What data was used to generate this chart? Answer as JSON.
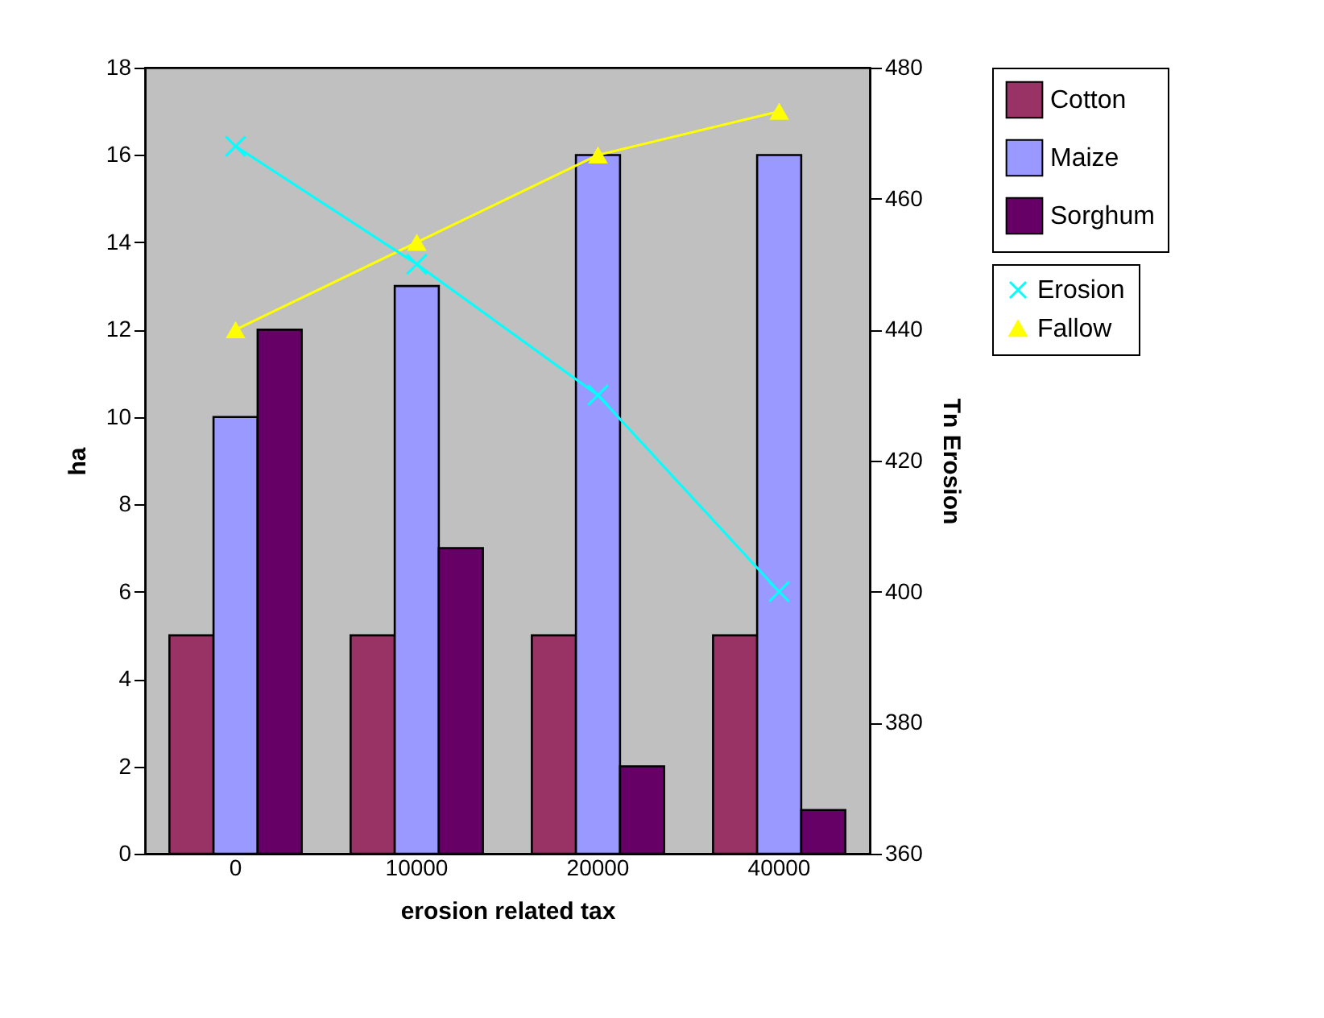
{
  "chart_data": {
    "type": "bar",
    "xlabel": "erosion related tax",
    "ylabel": "ha",
    "y2label": "Tn Erosion",
    "categories": [
      "0",
      "10000",
      "20000",
      "40000"
    ],
    "series": [
      {
        "name": "Cotton",
        "color": "#993366",
        "values": [
          5,
          5,
          5,
          5
        ]
      },
      {
        "name": "Maize",
        "color": "#9999ff",
        "values": [
          10,
          13,
          16,
          16
        ]
      },
      {
        "name": "Sorghum",
        "color": "#660066",
        "values": [
          12,
          7,
          2,
          1
        ]
      },
      {
        "name": "Erosion",
        "type": "line",
        "axis": "y2",
        "marker": "cross",
        "color": "#00ffff",
        "values": [
          468,
          450,
          430,
          400
        ]
      },
      {
        "name": "Fallow",
        "type": "line",
        "marker": "triangle",
        "color": "#ffff00",
        "values": [
          12,
          14,
          16,
          17
        ]
      }
    ],
    "ylim": [
      0,
      18
    ],
    "yticks": [
      0,
      2,
      4,
      6,
      8,
      10,
      12,
      14,
      16,
      18
    ],
    "y2lim": [
      360,
      480
    ],
    "y2ticks": [
      360,
      380,
      400,
      420,
      440,
      460,
      480
    ],
    "grid": false,
    "legend": "right"
  }
}
